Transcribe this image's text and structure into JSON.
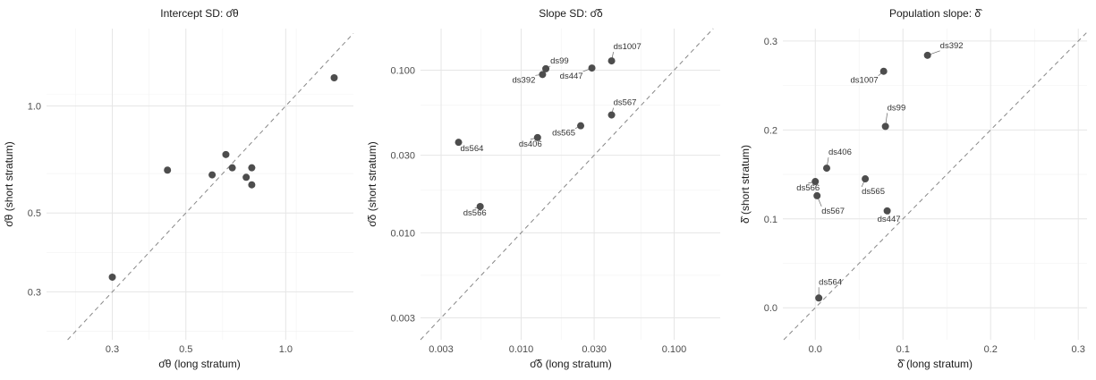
{
  "chart_data": [
    {
      "type": "scatter",
      "title": "Intercept SD: σ̂θ",
      "xlabel": "σ̂θ (long stratum)",
      "ylabel": "σ̂θ (short stratum)",
      "log_scale": true,
      "xlim": [
        0.19,
        1.6
      ],
      "ylim": [
        0.22,
        1.65
      ],
      "xticks": [
        {
          "v": 0.3,
          "label": "0.3"
        },
        {
          "v": 0.5,
          "label": "0.5"
        },
        {
          "v": 1.0,
          "label": "1.0"
        }
      ],
      "yticks": [
        {
          "v": 0.3,
          "label": "0.3"
        },
        {
          "v": 0.5,
          "label": "0.5"
        },
        {
          "v": 1.0,
          "label": "1.0"
        }
      ],
      "reference_line": "y = x (dashed)",
      "grid": true,
      "points": [
        {
          "x": 0.3,
          "y": 0.33,
          "label": ""
        },
        {
          "x": 0.44,
          "y": 0.66,
          "label": ""
        },
        {
          "x": 0.6,
          "y": 0.64,
          "label": ""
        },
        {
          "x": 0.66,
          "y": 0.73,
          "label": ""
        },
        {
          "x": 0.69,
          "y": 0.67,
          "label": ""
        },
        {
          "x": 0.76,
          "y": 0.63,
          "label": ""
        },
        {
          "x": 0.79,
          "y": 0.6,
          "label": ""
        },
        {
          "x": 0.79,
          "y": 0.67,
          "label": ""
        },
        {
          "x": 1.4,
          "y": 1.2,
          "label": ""
        }
      ]
    },
    {
      "type": "scatter",
      "title": "Slope SD: σ̂δ",
      "xlabel": "σ̂δ (long stratum)",
      "ylabel": "σ̂δ (short stratum)",
      "log_scale": true,
      "xlim": [
        0.0022,
        0.2
      ],
      "ylim": [
        0.0022,
        0.18
      ],
      "xticks": [
        {
          "v": 0.003,
          "label": "0.003"
        },
        {
          "v": 0.01,
          "label": "0.010"
        },
        {
          "v": 0.03,
          "label": "0.030"
        },
        {
          "v": 0.1,
          "label": "0.100"
        }
      ],
      "yticks": [
        {
          "v": 0.003,
          "label": "0.003"
        },
        {
          "v": 0.01,
          "label": "0.010"
        },
        {
          "v": 0.03,
          "label": "0.030"
        },
        {
          "v": 0.1,
          "label": "0.100"
        }
      ],
      "reference_line": "y = x (dashed)",
      "grid": true,
      "points": [
        {
          "x": 0.0039,
          "y": 0.036,
          "label": "ds564"
        },
        {
          "x": 0.0054,
          "y": 0.0145,
          "label": "ds566"
        },
        {
          "x": 0.0128,
          "y": 0.0385,
          "label": "ds406"
        },
        {
          "x": 0.0138,
          "y": 0.094,
          "label": "ds392"
        },
        {
          "x": 0.0145,
          "y": 0.102,
          "label": "ds99"
        },
        {
          "x": 0.0245,
          "y": 0.0455,
          "label": "ds565"
        },
        {
          "x": 0.029,
          "y": 0.103,
          "label": "ds447"
        },
        {
          "x": 0.039,
          "y": 0.053,
          "label": "ds567"
        },
        {
          "x": 0.039,
          "y": 0.114,
          "label": "ds1007"
        }
      ]
    },
    {
      "type": "scatter",
      "title": "Population slope: δ̂",
      "xlabel": "δ̂ (long stratum)",
      "ylabel": "δ̂ (short stratum)",
      "log_scale": false,
      "xlim": [
        -0.037,
        0.31
      ],
      "ylim": [
        -0.036,
        0.314
      ],
      "xticks": [
        {
          "v": 0.0,
          "label": "0.0"
        },
        {
          "v": 0.1,
          "label": "0.1"
        },
        {
          "v": 0.2,
          "label": "0.2"
        },
        {
          "v": 0.3,
          "label": "0.3"
        }
      ],
      "yticks": [
        {
          "v": 0.0,
          "label": "0.0"
        },
        {
          "v": 0.1,
          "label": "0.1"
        },
        {
          "v": 0.2,
          "label": "0.2"
        },
        {
          "v": 0.3,
          "label": "0.3"
        }
      ],
      "reference_line": "y = x (dashed)",
      "grid": true,
      "points": [
        {
          "x": 0.128,
          "y": 0.284,
          "label": "ds392"
        },
        {
          "x": 0.078,
          "y": 0.266,
          "label": "ds1007"
        },
        {
          "x": 0.08,
          "y": 0.204,
          "label": "ds99"
        },
        {
          "x": 0.013,
          "y": 0.157,
          "label": "ds406"
        },
        {
          "x": 0.0,
          "y": 0.142,
          "label": "ds566"
        },
        {
          "x": 0.057,
          "y": 0.145,
          "label": "ds565"
        },
        {
          "x": 0.002,
          "y": 0.126,
          "label": "ds567"
        },
        {
          "x": 0.082,
          "y": 0.109,
          "label": "ds447"
        },
        {
          "x": 0.004,
          "y": 0.011,
          "label": "ds564"
        }
      ]
    }
  ]
}
